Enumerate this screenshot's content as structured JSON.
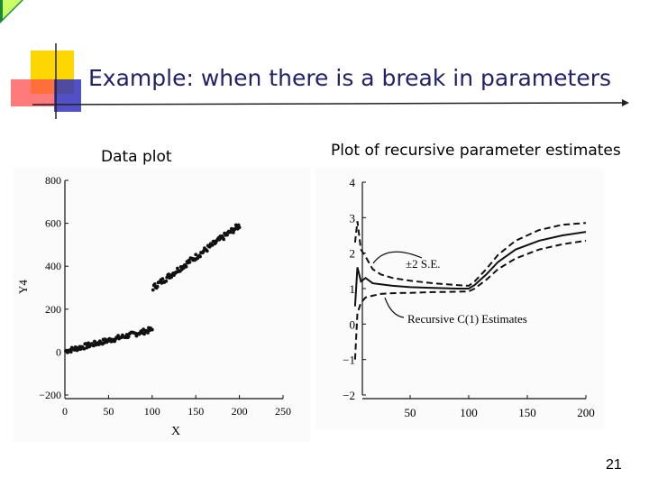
{
  "slide": {
    "title": "Example: when there is a break in parameters",
    "left_caption": "Data plot",
    "right_caption": "Plot of recursive parameter estimates",
    "page_number": "21",
    "colors": {
      "accent_yellow": "#ffd700",
      "accent_red": "#ff5050",
      "accent_blue": "#4040c0",
      "rule": "#222222"
    }
  },
  "chart_data": [
    {
      "type": "scatter",
      "title": "",
      "xlabel": "X",
      "ylabel": "Y4",
      "xlim": [
        0,
        250
      ],
      "ylim": [
        -200,
        800
      ],
      "x_ticks": [
        0,
        50,
        100,
        150,
        200,
        250
      ],
      "y_ticks": [
        -200,
        0,
        200,
        400,
        600,
        800
      ],
      "segments": [
        {
          "x_start": 1,
          "x_end": 100,
          "y_start": 5,
          "y_end": 105,
          "noise": 12
        },
        {
          "x_start": 101,
          "x_end": 200,
          "y_start": 300,
          "y_end": 590,
          "noise": 14
        }
      ]
    },
    {
      "type": "line",
      "title": "",
      "xlim": [
        0,
        200
      ],
      "ylim": [
        -2,
        4
      ],
      "x_ticks": [
        50,
        100,
        150,
        200
      ],
      "y_ticks": [
        -2,
        -1,
        0,
        1,
        2,
        3,
        4
      ],
      "annotations": [
        "±2 S.E.",
        "Recursive C(1) Estimates"
      ],
      "series": [
        {
          "style": "solid",
          "points": [
            [
              3,
              0.5
            ],
            [
              5,
              1.6
            ],
            [
              8,
              1.2
            ],
            [
              12,
              1.3
            ],
            [
              18,
              1.15
            ],
            [
              25,
              1.12
            ],
            [
              35,
              1.08
            ],
            [
              50,
              1.04
            ],
            [
              70,
              1.02
            ],
            [
              90,
              1.0
            ],
            [
              100,
              1.0
            ],
            [
              105,
              1.1
            ],
            [
              115,
              1.4
            ],
            [
              125,
              1.75
            ],
            [
              140,
              2.1
            ],
            [
              160,
              2.35
            ],
            [
              180,
              2.5
            ],
            [
              200,
              2.6
            ]
          ]
        },
        {
          "style": "dashed",
          "points": [
            [
              3,
              2.3
            ],
            [
              5,
              2.9
            ],
            [
              8,
              2.1
            ],
            [
              12,
              1.9
            ],
            [
              18,
              1.55
            ],
            [
              25,
              1.4
            ],
            [
              35,
              1.3
            ],
            [
              50,
              1.22
            ],
            [
              70,
              1.15
            ],
            [
              90,
              1.1
            ],
            [
              100,
              1.08
            ],
            [
              105,
              1.2
            ],
            [
              115,
              1.55
            ],
            [
              125,
              1.95
            ],
            [
              140,
              2.35
            ],
            [
              160,
              2.65
            ],
            [
              180,
              2.8
            ],
            [
              200,
              2.85
            ]
          ]
        },
        {
          "style": "dashed",
          "points": [
            [
              3,
              -1.0
            ],
            [
              5,
              0.3
            ],
            [
              8,
              0.6
            ],
            [
              12,
              0.75
            ],
            [
              18,
              0.8
            ],
            [
              25,
              0.85
            ],
            [
              35,
              0.87
            ],
            [
              50,
              0.88
            ],
            [
              70,
              0.9
            ],
            [
              90,
              0.91
            ],
            [
              100,
              0.92
            ],
            [
              105,
              1.0
            ],
            [
              115,
              1.25
            ],
            [
              125,
              1.55
            ],
            [
              140,
              1.85
            ],
            [
              160,
              2.1
            ],
            [
              180,
              2.25
            ],
            [
              200,
              2.35
            ]
          ]
        }
      ]
    }
  ]
}
